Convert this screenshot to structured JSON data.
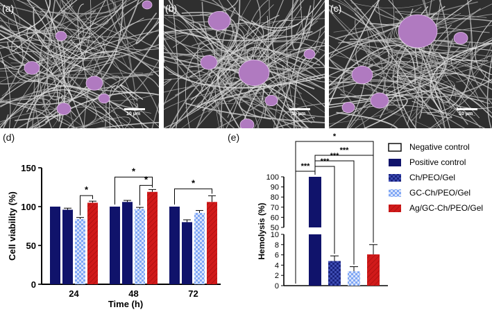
{
  "panels": {
    "a": {
      "label": "(a)",
      "scale": "10 μm"
    },
    "b": {
      "label": "(b)",
      "scale": "10 μm"
    },
    "c": {
      "label": "(c)",
      "scale": "10 μm"
    },
    "d": {
      "label": "(d)"
    },
    "e": {
      "label": "(e)"
    }
  },
  "colors": {
    "navy": "#10136b",
    "checker_navy": "#1a237e",
    "checker_light": "#7fa7f5",
    "red": "#d11a1a",
    "cell": "#b07ac0"
  },
  "chart_data": [
    {
      "id": "d",
      "type": "bar",
      "xlabel": "Time (h)",
      "ylabel": "Cell viability (%)",
      "ylim": [
        0,
        150
      ],
      "yticks": [
        0,
        50,
        100,
        150
      ],
      "categories": [
        "24",
        "48",
        "72"
      ],
      "series": [
        {
          "values": [
            100,
            100,
            100
          ],
          "errors": [
            0,
            0,
            0
          ]
        },
        {
          "values": [
            96,
            106,
            80
          ],
          "errors": [
            2,
            2,
            3
          ]
        },
        {
          "values": [
            84,
            97,
            92
          ],
          "errors": [
            2,
            2,
            3
          ]
        },
        {
          "values": [
            105,
            119,
            106
          ],
          "errors": [
            2,
            3,
            8
          ]
        }
      ],
      "significance": [
        "*",
        "*",
        "*",
        "*"
      ]
    },
    {
      "id": "e",
      "type": "bar",
      "ylabel": "Hemolysis (%)",
      "yticks_lower": [
        0,
        2,
        4,
        6,
        8,
        10
      ],
      "yticks_upper": [
        50,
        60,
        70,
        80,
        90,
        100
      ],
      "categories": [
        "Negative control",
        "Positive control",
        "Ch/PEO/Gel",
        "GC-Ch/PEO/Gel",
        "Ag/GC-Ch/PEO/Gel"
      ],
      "values": [
        0,
        100,
        4.8,
        2.8,
        6.1
      ],
      "errors": [
        0,
        0,
        1.0,
        0.9,
        1.9
      ],
      "significance": [
        "***",
        "***",
        "***",
        "***",
        "*"
      ],
      "legend": [
        "Negative control",
        "Positive control",
        "Ch/PEO/Gel",
        "GC-Ch/PEO/Gel",
        "Ag/GC-Ch/PEO/Gel"
      ],
      "legend_position": "right"
    }
  ]
}
